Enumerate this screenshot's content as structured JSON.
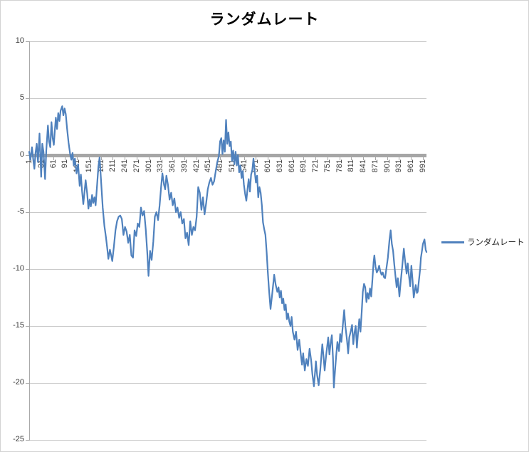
{
  "window": {
    "background": "#FFFFFF",
    "border_color": "#D3D3D3"
  },
  "chart_data": {
    "type": "line",
    "title": "ランダムレート",
    "grid": true,
    "gridline_color": "#C9C9C9",
    "zero_line_color": "#A6A6A6",
    "axis_color": "#A9A9A9",
    "legend": {
      "position": "right",
      "label": "ランダムレート"
    },
    "x_axis": {
      "min": 1,
      "max": 1000,
      "tick_step": 30,
      "label_rotation": -90,
      "tick_values": [
        1,
        31,
        61,
        91,
        121,
        151,
        181,
        211,
        241,
        271,
        301,
        331,
        361,
        391,
        421,
        451,
        481,
        511,
        541,
        571,
        601,
        631,
        661,
        691,
        721,
        751,
        781,
        811,
        841,
        871,
        901,
        931,
        961,
        991
      ],
      "tick_labels": [
        "1",
        "31",
        "61",
        "91",
        "121",
        "151",
        "181",
        "211",
        "241",
        "271",
        "301",
        "331",
        "361",
        "391",
        "421",
        "451",
        "481",
        "511",
        "541",
        "571",
        "601",
        "631",
        "661",
        "691",
        "721",
        "751",
        "781",
        "811",
        "841",
        "871",
        "901",
        "931",
        "961",
        "991"
      ]
    },
    "y_axis": {
      "min": -25,
      "max": 10,
      "tick_step": 5,
      "tick_values": [
        10,
        5,
        0,
        -5,
        -10,
        -15,
        -20,
        -25
      ],
      "tick_labels": [
        "10",
        "5",
        "0",
        "-5",
        "-10",
        "-15",
        "-20",
        "-25"
      ]
    },
    "series": [
      {
        "name": "ランダムレート",
        "color": "#4F81BD",
        "stroke_width": 2.2,
        "points": [
          [
            1,
            0.3
          ],
          [
            4,
            -0.4
          ],
          [
            8,
            0.7
          ],
          [
            12,
            -0.6
          ],
          [
            14,
            -1.2
          ],
          [
            17,
            0.2
          ],
          [
            20,
            1.0
          ],
          [
            23,
            -0.6
          ],
          [
            27,
            1.9
          ],
          [
            31,
            -1.9
          ],
          [
            34,
            1.0
          ],
          [
            37,
            0.3
          ],
          [
            41,
            -2.1
          ],
          [
            44,
            0.4
          ],
          [
            48,
            2.6
          ],
          [
            51,
            1.2
          ],
          [
            54,
            0.7
          ],
          [
            57,
            2.9
          ],
          [
            60,
            1.5
          ],
          [
            63,
            0.9
          ],
          [
            66,
            2.4
          ],
          [
            68,
            3.3
          ],
          [
            71,
            2.3
          ],
          [
            74,
            3.7
          ],
          [
            77,
            3.0
          ],
          [
            80,
            3.9
          ],
          [
            84,
            4.3
          ],
          [
            87,
            3.5
          ],
          [
            90,
            4.1
          ],
          [
            93,
            3.6
          ],
          [
            96,
            2.4
          ],
          [
            100,
            1.1
          ],
          [
            104,
            0.1
          ],
          [
            107,
            -0.4
          ],
          [
            110,
            0.2
          ],
          [
            113,
            -0.9
          ],
          [
            116,
            -0.3
          ],
          [
            120,
            -1.6
          ],
          [
            124,
            -0.8
          ],
          [
            128,
            -2.7
          ],
          [
            131,
            -1.7
          ],
          [
            134,
            -3.2
          ],
          [
            137,
            -4.3
          ],
          [
            140,
            -3.3
          ],
          [
            143,
            -2.2
          ],
          [
            147,
            -3.4
          ],
          [
            150,
            -4.7
          ],
          [
            153,
            -3.9
          ],
          [
            156,
            -4.5
          ],
          [
            159,
            -3.5
          ],
          [
            162,
            -4.2
          ],
          [
            165,
            -3.7
          ],
          [
            168,
            -4.4
          ],
          [
            172,
            -2.5
          ],
          [
            175,
            -1.0
          ],
          [
            178,
            -0.2
          ],
          [
            182,
            -2.4
          ],
          [
            186,
            -4.6
          ],
          [
            190,
            -6.2
          ],
          [
            194,
            -7.2
          ],
          [
            197,
            -8.1
          ],
          [
            200,
            -9.1
          ],
          [
            204,
            -8.3
          ],
          [
            207,
            -8.8
          ],
          [
            210,
            -9.3
          ],
          [
            214,
            -8.0
          ],
          [
            218,
            -6.6
          ],
          [
            222,
            -5.8
          ],
          [
            226,
            -5.4
          ],
          [
            230,
            -5.3
          ],
          [
            234,
            -5.6
          ],
          [
            238,
            -7.0
          ],
          [
            242,
            -6.3
          ],
          [
            246,
            -6.7
          ],
          [
            250,
            -7.7
          ],
          [
            254,
            -7.0
          ],
          [
            258,
            -8.8
          ],
          [
            262,
            -9.0
          ],
          [
            266,
            -6.6
          ],
          [
            270,
            -7.1
          ],
          [
            274,
            -6.0
          ],
          [
            278,
            -6.3
          ],
          [
            282,
            -4.6
          ],
          [
            286,
            -5.3
          ],
          [
            290,
            -4.9
          ],
          [
            294,
            -6.5
          ],
          [
            298,
            -8.6
          ],
          [
            301,
            -10.6
          ],
          [
            305,
            -8.4
          ],
          [
            309,
            -9.2
          ],
          [
            313,
            -7.6
          ],
          [
            317,
            -5.4
          ],
          [
            321,
            -5.0
          ],
          [
            325,
            -5.7
          ],
          [
            329,
            -4.4
          ],
          [
            333,
            -2.7
          ],
          [
            336,
            -1.6
          ],
          [
            340,
            -2.6
          ],
          [
            343,
            -3.0
          ],
          [
            346,
            -1.8
          ],
          [
            350,
            -2.6
          ],
          [
            354,
            -3.9
          ],
          [
            358,
            -3.3
          ],
          [
            362,
            -4.4
          ],
          [
            366,
            -3.8
          ],
          [
            370,
            -5.0
          ],
          [
            374,
            -4.6
          ],
          [
            378,
            -5.5
          ],
          [
            382,
            -5.0
          ],
          [
            386,
            -6.0
          ],
          [
            390,
            -5.6
          ],
          [
            394,
            -7.3
          ],
          [
            398,
            -6.8
          ],
          [
            402,
            -7.9
          ],
          [
            406,
            -5.8
          ],
          [
            410,
            -7.0
          ],
          [
            414,
            -6.3
          ],
          [
            418,
            -6.6
          ],
          [
            422,
            -5.4
          ],
          [
            426,
            -2.8
          ],
          [
            430,
            -3.3
          ],
          [
            434,
            -4.8
          ],
          [
            438,
            -3.7
          ],
          [
            442,
            -5.2
          ],
          [
            446,
            -4.2
          ],
          [
            450,
            -3.0
          ],
          [
            454,
            -2.4
          ],
          [
            458,
            -2.0
          ],
          [
            462,
            -2.6
          ],
          [
            466,
            -2.3
          ],
          [
            470,
            -1.4
          ],
          [
            474,
            -0.6
          ],
          [
            478,
            -0.1
          ],
          [
            481,
            1.2
          ],
          [
            484,
            1.5
          ],
          [
            487,
            0.1
          ],
          [
            490,
            1.3
          ],
          [
            493,
            0.3
          ],
          [
            496,
            3.1
          ],
          [
            499,
            1.0
          ],
          [
            502,
            2.0
          ],
          [
            505,
            0.8
          ],
          [
            508,
            1.2
          ],
          [
            511,
            -0.5
          ],
          [
            514,
            0.4
          ],
          [
            517,
            -0.8
          ],
          [
            520,
            0.3
          ],
          [
            523,
            -0.9
          ],
          [
            526,
            0.0
          ],
          [
            529,
            -1.5
          ],
          [
            532,
            -0.9
          ],
          [
            535,
            -2.0
          ],
          [
            538,
            -1.4
          ],
          [
            541,
            -2.6
          ],
          [
            544,
            -3.4
          ],
          [
            547,
            -4.0
          ],
          [
            550,
            -3.0
          ],
          [
            553,
            -2.1
          ],
          [
            556,
            -3.2
          ],
          [
            559,
            -1.7
          ],
          [
            562,
            -1.3
          ],
          [
            565,
            -0.3
          ],
          [
            568,
            -1.4
          ],
          [
            571,
            -2.4
          ],
          [
            574,
            -1.8
          ],
          [
            577,
            -3.7
          ],
          [
            580,
            -2.8
          ],
          [
            583,
            -3.3
          ],
          [
            586,
            -4.4
          ],
          [
            589,
            -5.9
          ],
          [
            592,
            -6.5
          ],
          [
            595,
            -7.0
          ],
          [
            598,
            -8.5
          ],
          [
            601,
            -10.2
          ],
          [
            604,
            -11.8
          ],
          [
            608,
            -13.5
          ],
          [
            612,
            -12.2
          ],
          [
            617,
            -10.5
          ],
          [
            621,
            -11.4
          ],
          [
            625,
            -12.0
          ],
          [
            628,
            -11.6
          ],
          [
            631,
            -12.5
          ],
          [
            634,
            -11.9
          ],
          [
            637,
            -13.0
          ],
          [
            640,
            -12.6
          ],
          [
            643,
            -13.6
          ],
          [
            646,
            -13.1
          ],
          [
            649,
            -14.4
          ],
          [
            652,
            -13.9
          ],
          [
            655,
            -14.6
          ],
          [
            658,
            -15.0
          ],
          [
            661,
            -14.2
          ],
          [
            664,
            -15.5
          ],
          [
            668,
            -16.2
          ],
          [
            672,
            -15.5
          ],
          [
            676,
            -17.1
          ],
          [
            680,
            -16.2
          ],
          [
            684,
            -17.5
          ],
          [
            687,
            -18.4
          ],
          [
            690,
            -17.4
          ],
          [
            694,
            -18.9
          ],
          [
            698,
            -17.9
          ],
          [
            702,
            -18.5
          ],
          [
            706,
            -17.0
          ],
          [
            710,
            -18.0
          ],
          [
            713,
            -19.2
          ],
          [
            717,
            -20.3
          ],
          [
            720,
            -19.0
          ],
          [
            722,
            -18.1
          ],
          [
            725,
            -19.3
          ],
          [
            729,
            -20.2
          ],
          [
            733,
            -18.8
          ],
          [
            738,
            -16.6
          ],
          [
            741,
            -17.6
          ],
          [
            744,
            -18.9
          ],
          [
            748,
            -17.5
          ],
          [
            753,
            -16.0
          ],
          [
            756,
            -17.5
          ],
          [
            759,
            -16.5
          ],
          [
            762,
            -15.8
          ],
          [
            765,
            -17.8
          ],
          [
            767,
            -20.4
          ],
          [
            770,
            -19.0
          ],
          [
            773,
            -17.6
          ],
          [
            776,
            -16.4
          ],
          [
            780,
            -17.2
          ],
          [
            783,
            -15.7
          ],
          [
            786,
            -16.4
          ],
          [
            790,
            -14.8
          ],
          [
            793,
            -13.6
          ],
          [
            796,
            -15.0
          ],
          [
            800,
            -16.2
          ],
          [
            803,
            -17.4
          ],
          [
            806,
            -16.0
          ],
          [
            810,
            -15.4
          ],
          [
            813,
            -14.9
          ],
          [
            816,
            -16.6
          ],
          [
            819,
            -15.6
          ],
          [
            822,
            -15.0
          ],
          [
            825,
            -16.9
          ],
          [
            828,
            -15.6
          ],
          [
            831,
            -14.4
          ],
          [
            834,
            -15.5
          ],
          [
            837,
            -13.8
          ],
          [
            840,
            -12.0
          ],
          [
            843,
            -11.3
          ],
          [
            846,
            -11.6
          ],
          [
            849,
            -12.9
          ],
          [
            852,
            -12.1
          ],
          [
            855,
            -12.6
          ],
          [
            858,
            -11.7
          ],
          [
            861,
            -12.4
          ],
          [
            864,
            -11.0
          ],
          [
            867,
            -9.4
          ],
          [
            869,
            -8.8
          ],
          [
            872,
            -9.8
          ],
          [
            875,
            -10.3
          ],
          [
            878,
            -10.1
          ],
          [
            881,
            -9.7
          ],
          [
            884,
            -10.2
          ],
          [
            887,
            -10.5
          ],
          [
            890,
            -10.3
          ],
          [
            893,
            -10.7
          ],
          [
            896,
            -10.8
          ],
          [
            899,
            -10.0
          ],
          [
            903,
            -9.0
          ],
          [
            907,
            -7.4
          ],
          [
            910,
            -6.6
          ],
          [
            913,
            -7.8
          ],
          [
            916,
            -8.4
          ],
          [
            919,
            -9.6
          ],
          [
            922,
            -10.6
          ],
          [
            925,
            -11.6
          ],
          [
            928,
            -10.8
          ],
          [
            932,
            -12.4
          ],
          [
            935,
            -11.2
          ],
          [
            939,
            -9.8
          ],
          [
            943,
            -8.2
          ],
          [
            946,
            -9.2
          ],
          [
            950,
            -10.4
          ],
          [
            953,
            -9.5
          ],
          [
            956,
            -10.6
          ],
          [
            959,
            -11.5
          ],
          [
            962,
            -9.7
          ],
          [
            965,
            -11.0
          ],
          [
            968,
            -12.5
          ],
          [
            971,
            -11.8
          ],
          [
            973,
            -11.4
          ],
          [
            976,
            -12.1
          ],
          [
            978,
            -12.0
          ],
          [
            981,
            -11.0
          ],
          [
            984,
            -10.0
          ],
          [
            986,
            -9.0
          ],
          [
            989,
            -8.3
          ],
          [
            991,
            -7.8
          ],
          [
            995,
            -7.4
          ],
          [
            998,
            -8.3
          ],
          [
            1000,
            -8.5
          ]
        ]
      }
    ]
  }
}
